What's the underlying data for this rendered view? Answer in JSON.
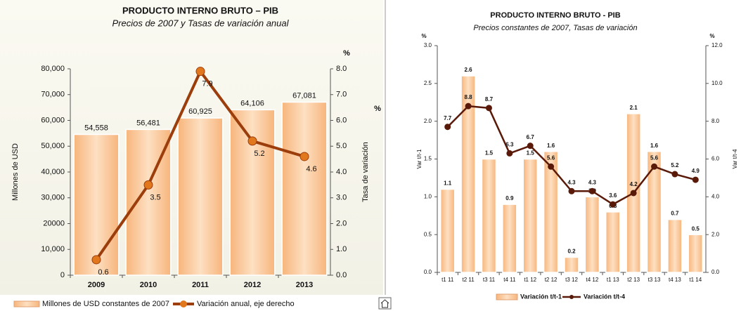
{
  "chart_data": [
    {
      "type": "bar_line",
      "title": "PRODUCTO INTERNO BRUTO – PIB",
      "subtitle": "Precios de 2007 y Tasas de variación anual",
      "ylabel": "Millones de USD",
      "y2label": "Tasa de variación",
      "y2_unit": "%",
      "side_note": "%",
      "categories": [
        "2009",
        "2010",
        "2011",
        "2012",
        "2013"
      ],
      "series": [
        {
          "name": "Millones de USD constantes de 2007",
          "color": "#fbc796",
          "values": [
            54558,
            56481,
            60925,
            64106,
            67081
          ],
          "value_labels": [
            "54,558",
            "56,481",
            "60,925",
            "64,106",
            "67,081"
          ]
        },
        {
          "name": "Variación anual, eje derecho",
          "color": "#9c3d0c",
          "axis": "y2",
          "values": [
            0.6,
            3.5,
            7.9,
            5.2,
            4.6
          ]
        }
      ],
      "ylim": [
        0,
        80000
      ],
      "yticks": [
        0,
        {
          "value": 10000,
          "label": "10,000"
        },
        {
          "value": 20000,
          "label": "20000"
        },
        {
          "value": 30000,
          "label": "30,000"
        },
        {
          "value": 40000,
          "label": "40,000"
        },
        {
          "value": 50000,
          "label": "50,000"
        },
        {
          "value": 60000,
          "label": "60,000"
        },
        {
          "value": 70000,
          "label": "70,000"
        },
        {
          "value": 80000,
          "label": "80,000"
        }
      ],
      "y2lim": [
        0,
        8
      ],
      "y2ticks": [
        {
          "value": 0,
          "label": "0.0"
        },
        {
          "value": 1,
          "label": "1.0"
        },
        {
          "value": 2,
          "label": "2.0"
        },
        {
          "value": 3,
          "label": "3.0"
        },
        {
          "value": 4,
          "label": "4.0"
        },
        {
          "value": 5,
          "label": "5.0"
        },
        {
          "value": 6,
          "label": "6.0"
        },
        {
          "value": 7,
          "label": "7.0"
        },
        {
          "value": 8,
          "label": "8.0"
        }
      ]
    },
    {
      "type": "bar_line",
      "title": "PRODUCTO INTERNO BRUTO - PIB",
      "subtitle": "Precios constantes de 2007, Tasas de variación",
      "ylabel": "Var t/t-1",
      "y2label": "Var t/t-4",
      "y_unit": "%",
      "y2_unit": "%",
      "categories": [
        "t1 11",
        "t2 11",
        "t3 11",
        "t4 11",
        "t1 12",
        "t2 12",
        "t3 12",
        "t4 12",
        "t1 13",
        "t2 13",
        "t3 13",
        "t4 13",
        "t1 14"
      ],
      "series": [
        {
          "name": "Variación t/t-1",
          "color": "#fbc796",
          "values": [
            1.1,
            2.6,
            1.5,
            0.9,
            1.5,
            1.6,
            0.2,
            1.0,
            0.8,
            2.1,
            1.6,
            0.7,
            0.5
          ],
          "value_labels": [
            "1.1",
            "2.6",
            "1.5",
            "0.9",
            "1.5",
            "1.6",
            "0.2",
            "1.0",
            "0.8",
            "2.1",
            "1.6",
            "0.7",
            "0.5"
          ]
        },
        {
          "name": "Variación t/t-4",
          "color": "#5a1a0a",
          "axis": "y2",
          "values": [
            7.7,
            8.8,
            8.7,
            6.3,
            6.7,
            5.6,
            4.3,
            4.3,
            3.6,
            4.2,
            5.6,
            5.2,
            4.9
          ]
        }
      ],
      "ylim": [
        0,
        3
      ],
      "yticks": [
        {
          "value": 0,
          "label": "0.0"
        },
        0.5,
        {
          "value": 1,
          "label": "1.0"
        },
        1.5,
        {
          "value": 2,
          "label": "2.0"
        },
        2.5,
        {
          "value": 3,
          "label": "3.0"
        }
      ],
      "y2lim": [
        0,
        12
      ],
      "y2ticks": [
        {
          "value": 0,
          "label": "0.0"
        },
        {
          "value": 2,
          "label": "2.0"
        },
        {
          "value": 4,
          "label": "4.0"
        },
        {
          "value": 6,
          "label": "6.0"
        },
        {
          "value": 8,
          "label": "8.0"
        },
        {
          "value": 10,
          "label": "10.0"
        },
        {
          "value": 12,
          "label": "12.0"
        }
      ]
    }
  ]
}
